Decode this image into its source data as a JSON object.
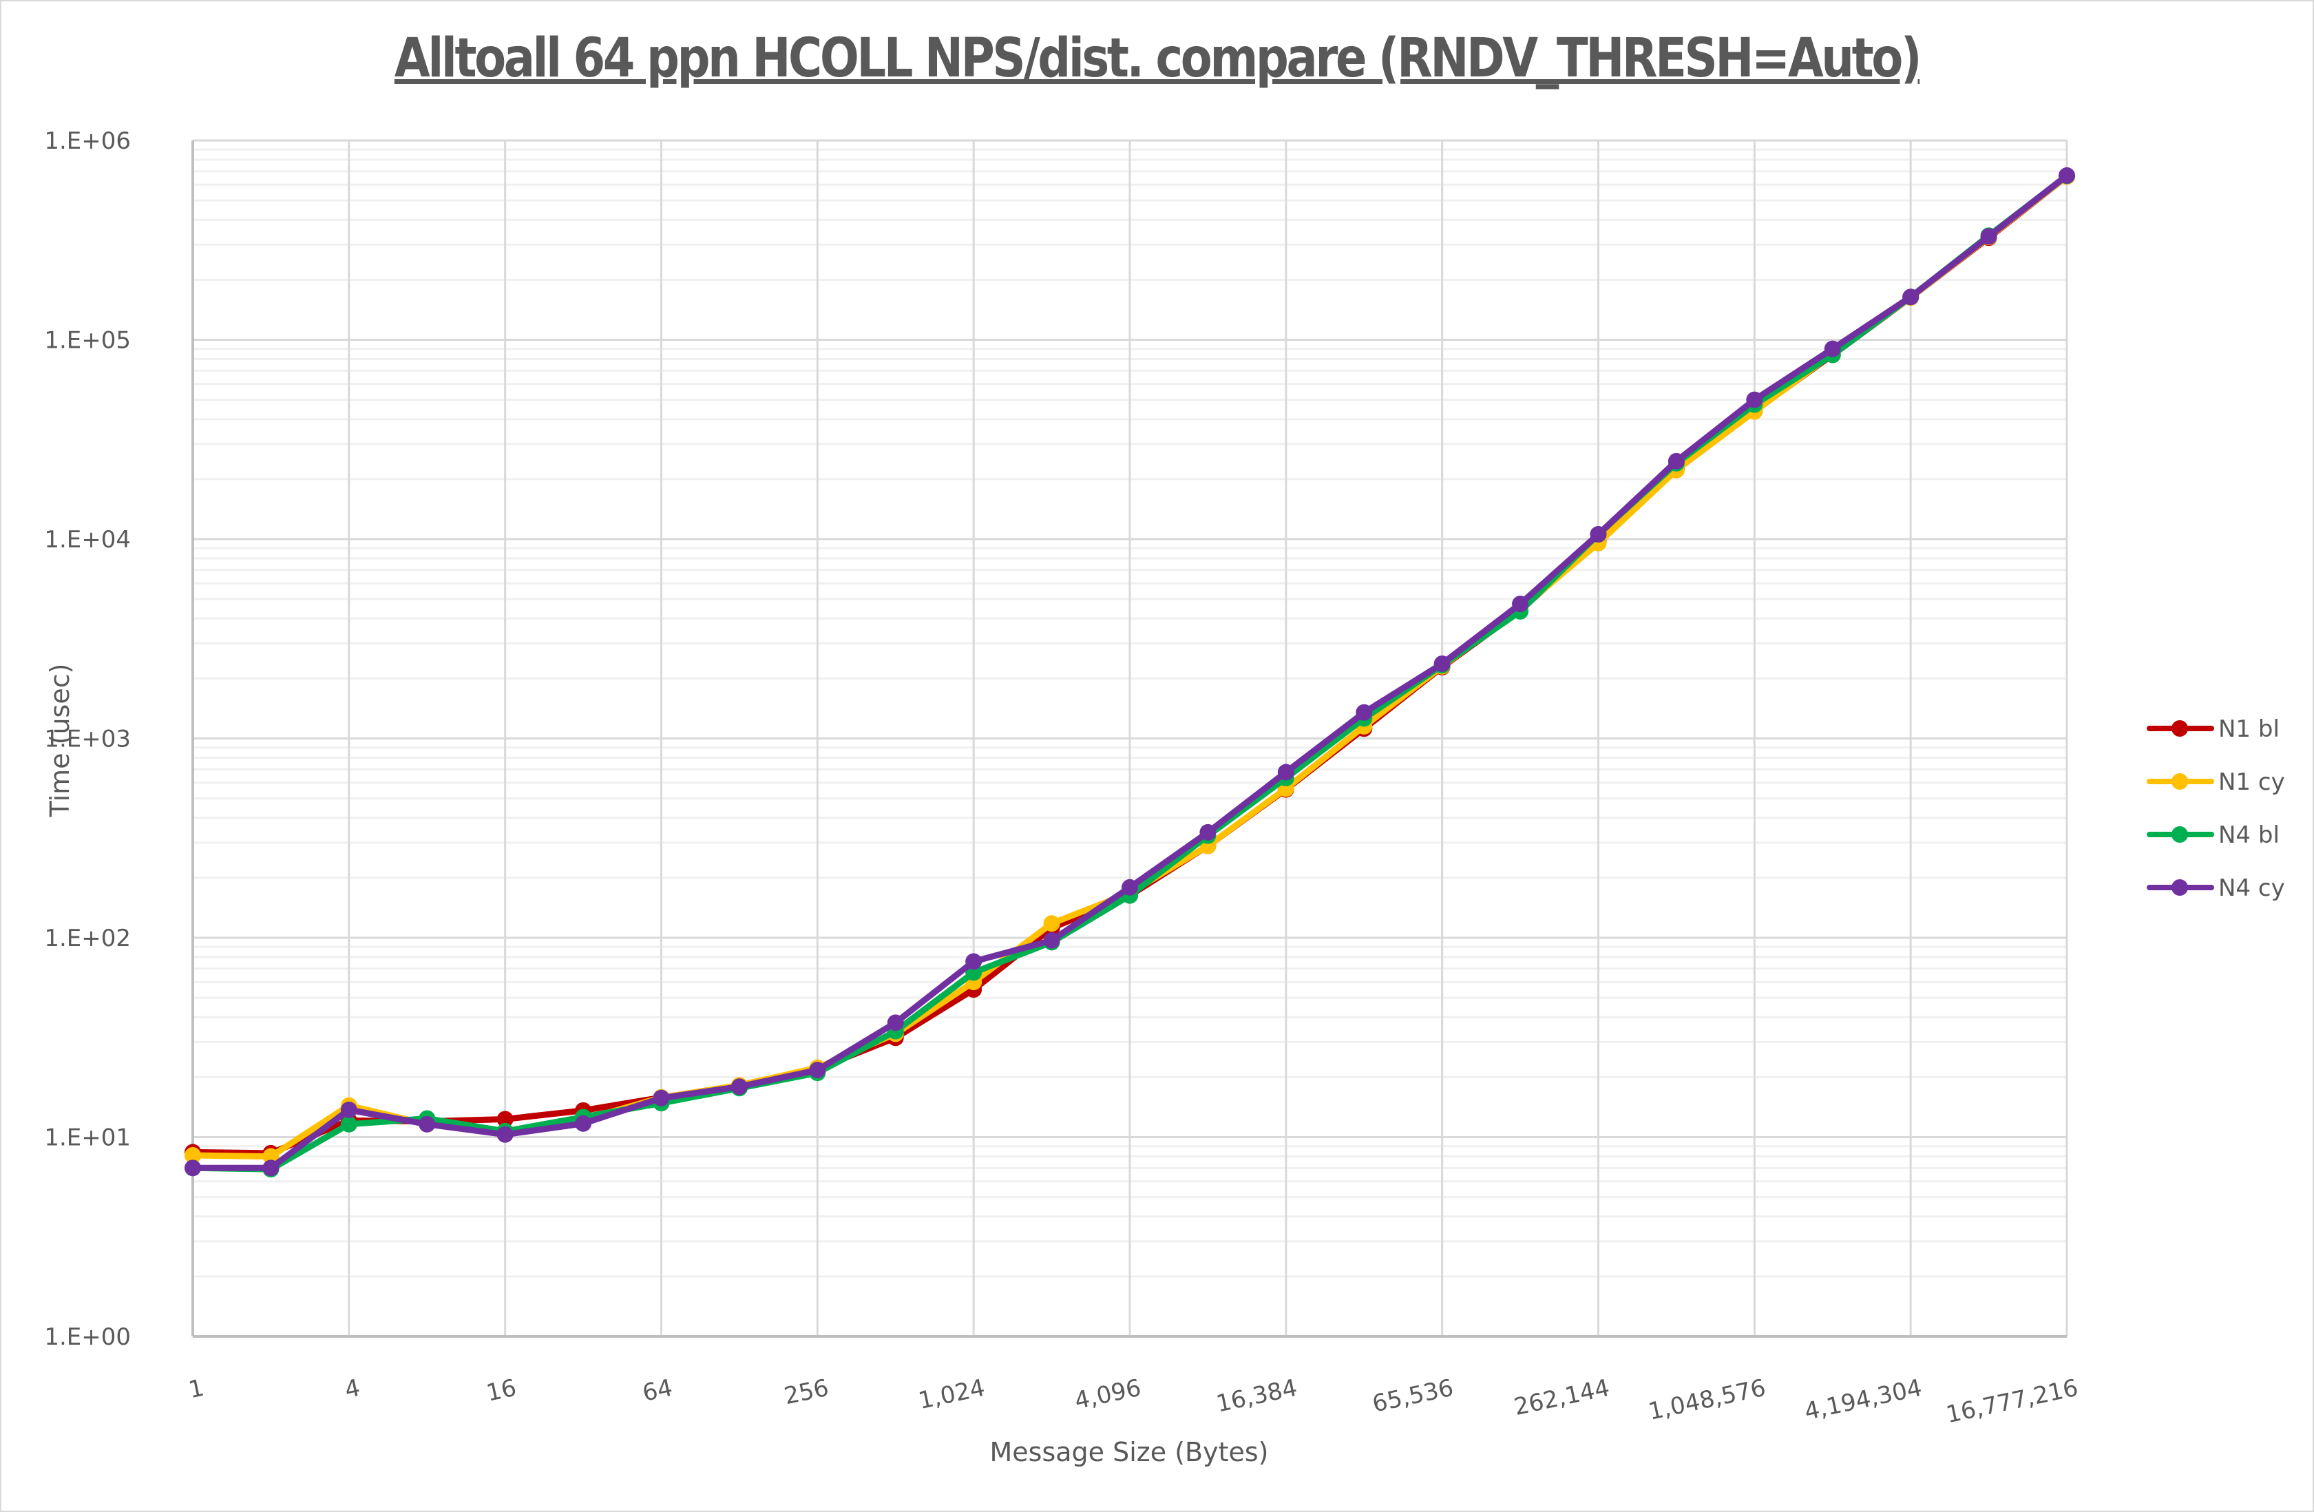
{
  "chart_data": {
    "type": "line",
    "title": "Alltoall 64 ppn HCOLL NPS/dist. compare (RNDV_THRESH=Auto)",
    "xlabel": "Message Size (Bytes)",
    "ylabel": "Time (usec)",
    "x_scale": "log2",
    "y_scale": "log10",
    "ylim": [
      1,
      1000000
    ],
    "grid": true,
    "legend_position": "right",
    "x": [
      1,
      2,
      4,
      8,
      16,
      32,
      64,
      128,
      256,
      512,
      1024,
      2048,
      4096,
      8192,
      16384,
      32768,
      65536,
      131072,
      262144,
      524288,
      1048576,
      2097152,
      4194304,
      8388608,
      16777216
    ],
    "x_tick_labels": [
      "1",
      "4",
      "16",
      "64",
      "256",
      "1,024",
      "4,096",
      "16,384",
      "65,536",
      "262,144",
      "1,048,576",
      "4,194,304",
      "16,777,216"
    ],
    "y_tick_labels": [
      "1.E+00",
      "1.E+01",
      "1.E+02",
      "1.E+03",
      "1.E+04",
      "1.E+05",
      "1.E+06"
    ],
    "series": [
      {
        "name": "N1 bl",
        "color": "#C00000",
        "values": [
          8.4,
          8.3,
          12.1,
          12.0,
          12.3,
          13.6,
          15.8,
          18.0,
          22.0,
          31.5,
          55,
          112,
          163,
          289,
          555,
          1120,
          2280,
          4400,
          9800,
          22500,
          44000,
          84000,
          163000,
          325000,
          660000
        ]
      },
      {
        "name": "N1 cy",
        "color": "#FFC000",
        "values": [
          8.1,
          8.0,
          14.4,
          11.6,
          10.7,
          12.2,
          15.8,
          18.2,
          22.3,
          33,
          60,
          118,
          168,
          289,
          560,
          1150,
          2300,
          4450,
          9550,
          22200,
          43700,
          85000,
          163000,
          328000,
          660000
        ]
      },
      {
        "name": "N4 bl",
        "color": "#00B050",
        "values": [
          7.0,
          6.9,
          11.6,
          12.4,
          10.7,
          12.6,
          14.8,
          17.6,
          21.0,
          34,
          67,
          95,
          163,
          325,
          633,
          1260,
          2330,
          4340,
          10570,
          24000,
          47300,
          84000,
          164000,
          333000,
          665000
        ]
      },
      {
        "name": "N4 cy",
        "color": "#7030A0",
        "values": [
          7.0,
          7.0,
          13.7,
          11.6,
          10.3,
          11.7,
          15.7,
          17.9,
          21.7,
          37.5,
          76,
          97,
          179,
          338,
          677,
          1350,
          2370,
          4730,
          10570,
          24600,
          50000,
          90100,
          164000,
          330000,
          667000
        ]
      }
    ]
  },
  "legend": {
    "items": [
      "N1 bl",
      "N1 cy",
      "N4 bl",
      "N4 cy"
    ]
  }
}
